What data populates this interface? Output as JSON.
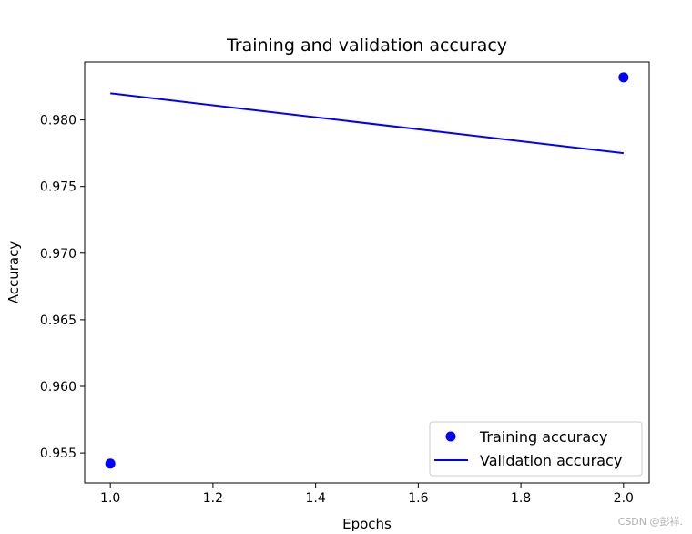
{
  "chart_data": {
    "type": "line",
    "title": "Training and validation accuracy",
    "xlabel": "Epochs",
    "ylabel": "Accuracy",
    "xlim": [
      0.95,
      2.05
    ],
    "ylim": [
      0.95275,
      0.98435
    ],
    "xticks": [
      1.0,
      1.2,
      1.4,
      1.6,
      1.8,
      2.0
    ],
    "xtick_labels": [
      "1.0",
      "1.2",
      "1.4",
      "1.6",
      "1.8",
      "2.0"
    ],
    "yticks": [
      0.955,
      0.96,
      0.965,
      0.97,
      0.975,
      0.98
    ],
    "ytick_labels": [
      "0.955",
      "0.960",
      "0.965",
      "0.970",
      "0.975",
      "0.980"
    ],
    "grid": false,
    "legend_position": "lower-right",
    "series": [
      {
        "name": "Training accuracy",
        "style": "points",
        "color": "#0000ff",
        "x": [
          1.0,
          2.0
        ],
        "y": [
          0.9542,
          0.9832
        ]
      },
      {
        "name": "Validation accuracy",
        "style": "line",
        "color": "#0000ff",
        "x": [
          1.0,
          2.0
        ],
        "y": [
          0.982,
          0.9775
        ]
      }
    ]
  },
  "watermark": "CSDN @彭祥."
}
